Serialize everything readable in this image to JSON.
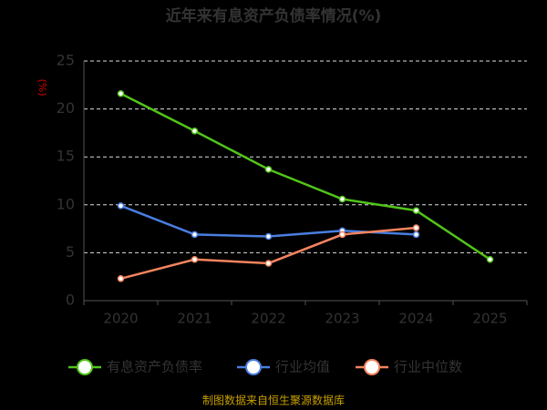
{
  "chart_data": {
    "type": "line",
    "title": "近年来有息资产负债率情况(%)",
    "y_label": "(%)",
    "source": "制图数据来自恒生聚源数据库",
    "categories": [
      "2020",
      "2021",
      "2022",
      "2023",
      "2024",
      "2025"
    ],
    "series": [
      {
        "name": "有息资产负债率",
        "color": "#52c41a",
        "values": [
          21.6,
          17.7,
          13.7,
          10.6,
          9.4,
          4.3
        ]
      },
      {
        "name": "行业均值",
        "color": "#4a7ee0",
        "values": [
          9.9,
          6.9,
          6.7,
          7.3,
          6.9,
          null
        ]
      },
      {
        "name": "行业中位数",
        "color": "#f4845f",
        "values": [
          2.3,
          4.3,
          3.9,
          6.9,
          7.6,
          null
        ]
      }
    ],
    "ylim": [
      0,
      25
    ],
    "yticks": [
      0,
      5,
      10,
      15,
      20,
      25
    ],
    "grid": true
  }
}
